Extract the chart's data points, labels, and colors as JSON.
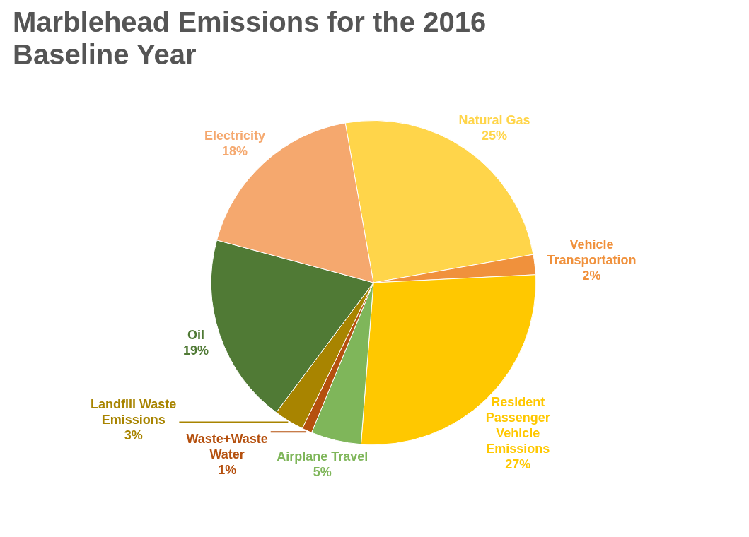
{
  "chart_data": {
    "type": "pie",
    "title": "Marblehead Emissions for the 2016 Baseline Year",
    "categories": [
      "Natural Gas",
      "Vehicle Transportation",
      "Resident Passenger Vehicle Emissions",
      "Airplane Travel",
      "Waste+Waste Water",
      "Landfill Waste Emissions",
      "Oil",
      "Electricity"
    ],
    "values": [
      25,
      2,
      27,
      5,
      1,
      3,
      19,
      18
    ],
    "colors": [
      "#ffd54a",
      "#f0913c",
      "#ffc800",
      "#7fb65a",
      "#b5500e",
      "#a88400",
      "#507a35",
      "#f5a86e"
    ],
    "value_labels": [
      "25%",
      "2%",
      "27%",
      "5%",
      "1%",
      "3%",
      "19%",
      "18%"
    ],
    "data_labels": true,
    "legend": false
  }
}
